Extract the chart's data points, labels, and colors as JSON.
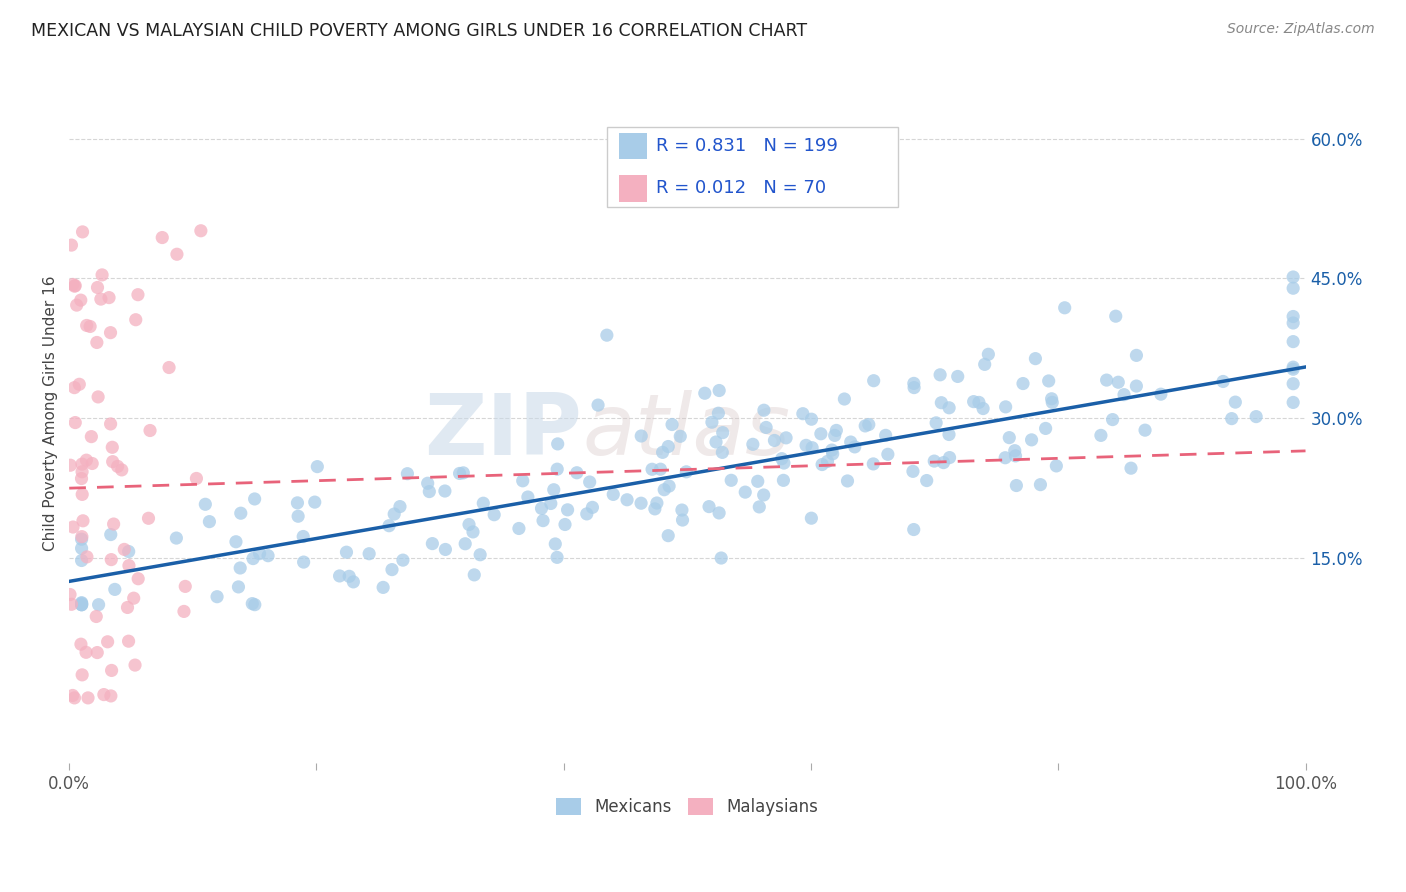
{
  "title": "MEXICAN VS MALAYSIAN CHILD POVERTY AMONG GIRLS UNDER 16 CORRELATION CHART",
  "source": "Source: ZipAtlas.com",
  "ylabel": "Child Poverty Among Girls Under 16",
  "watermark_zip": "ZIP",
  "watermark_atlas": "atlas",
  "blue_R": 0.831,
  "blue_N": 199,
  "pink_R": 0.012,
  "pink_N": 70,
  "xlim": [
    0.0,
    1.0
  ],
  "ylim": [
    -0.07,
    0.68
  ],
  "xticks": [
    0.0,
    0.2,
    0.4,
    0.6,
    0.8,
    1.0
  ],
  "xtick_labels": [
    "0.0%",
    "",
    "",
    "",
    "",
    "100.0%"
  ],
  "yticks": [
    0.15,
    0.3,
    0.45,
    0.6
  ],
  "ytick_labels": [
    "15.0%",
    "30.0%",
    "45.0%",
    "60.0%"
  ],
  "blue_color": "#a8cce8",
  "pink_color": "#f4b0c0",
  "blue_line_color": "#1a5fa8",
  "pink_line_color": "#e8637a",
  "grid_color": "#cccccc",
  "title_color": "#222222",
  "source_color": "#888888",
  "stat_color": "#2255cc",
  "background_color": "#ffffff",
  "blue_line_start_y": 0.125,
  "blue_line_end_y": 0.355,
  "pink_line_start_y": 0.225,
  "pink_line_end_y": 0.265
}
